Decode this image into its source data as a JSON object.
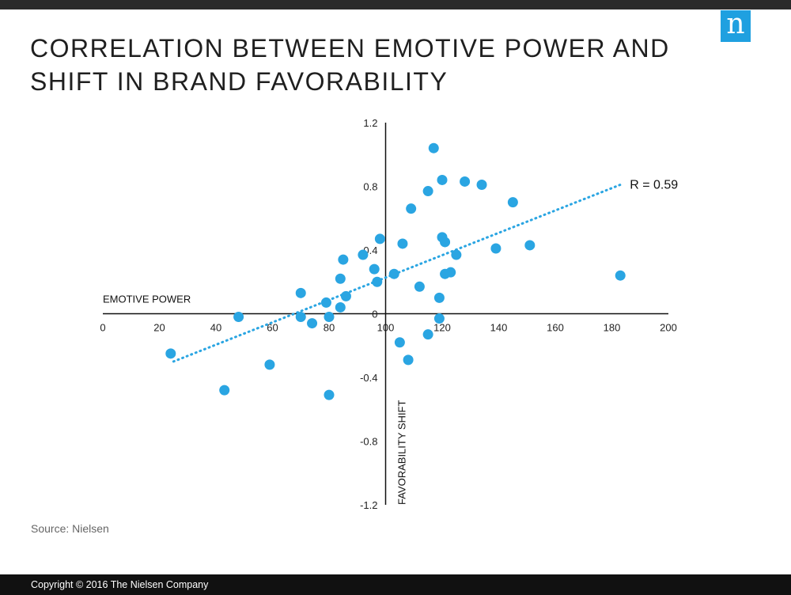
{
  "header": {
    "title": "CORRELATION BETWEEN EMOTIVE POWER AND SHIFT IN BRAND FAVORABILITY",
    "logo_letter": "n",
    "brand_color": "#1fa0e0"
  },
  "source": "Source: Nielsen",
  "footer": {
    "copyright": "Copyright © 2016 The Nielsen Company"
  },
  "chart_data": {
    "type": "scatter",
    "title": "CORRELATION BETWEEN EMOTIVE POWER AND SHIFT IN BRAND FAVORABILITY",
    "xlabel": "EMOTIVE POWER",
    "ylabel": "FAVORABILITY SHIFT",
    "xlim": [
      0,
      200
    ],
    "ylim": [
      -1.2,
      1.2
    ],
    "x_ticks": [
      0,
      20,
      40,
      60,
      80,
      100,
      120,
      140,
      160,
      180,
      200
    ],
    "x_tick_labels": [
      "0",
      "20",
      "40",
      "60",
      "80",
      "100",
      "120",
      "140",
      "160",
      "180",
      "200"
    ],
    "y_ticks": [
      1.2,
      0.8,
      0.4,
      0,
      -0.4,
      -0.8,
      -1.2
    ],
    "y_tick_labels": [
      "1.2",
      "0.8",
      "0.4",
      "0",
      "-0.4",
      "-0.8",
      "-1.2"
    ],
    "axis_cross": {
      "x": 100,
      "y": 0
    },
    "point_color": "#2aa5e2",
    "points": [
      {
        "x": 24,
        "y": -0.25
      },
      {
        "x": 43,
        "y": -0.48
      },
      {
        "x": 48,
        "y": -0.02
      },
      {
        "x": 59,
        "y": -0.32
      },
      {
        "x": 70,
        "y": 0.13
      },
      {
        "x": 70,
        "y": -0.02
      },
      {
        "x": 74,
        "y": -0.06
      },
      {
        "x": 79,
        "y": 0.07
      },
      {
        "x": 80,
        "y": -0.02
      },
      {
        "x": 80,
        "y": -0.51
      },
      {
        "x": 84,
        "y": 0.22
      },
      {
        "x": 84,
        "y": 0.04
      },
      {
        "x": 85,
        "y": 0.34
      },
      {
        "x": 86,
        "y": 0.11
      },
      {
        "x": 92,
        "y": 0.37
      },
      {
        "x": 96,
        "y": 0.28
      },
      {
        "x": 97,
        "y": 0.2
      },
      {
        "x": 98,
        "y": 0.47
      },
      {
        "x": 103,
        "y": 0.25
      },
      {
        "x": 105,
        "y": -0.18
      },
      {
        "x": 106,
        "y": 0.44
      },
      {
        "x": 108,
        "y": -0.29
      },
      {
        "x": 109,
        "y": 0.66
      },
      {
        "x": 112,
        "y": 0.17
      },
      {
        "x": 115,
        "y": 0.77
      },
      {
        "x": 115,
        "y": -0.13
      },
      {
        "x": 117,
        "y": 1.04
      },
      {
        "x": 119,
        "y": 0.1
      },
      {
        "x": 119,
        "y": -0.03
      },
      {
        "x": 120,
        "y": 0.84
      },
      {
        "x": 120,
        "y": 0.48
      },
      {
        "x": 121,
        "y": 0.25
      },
      {
        "x": 121,
        "y": 0.45
      },
      {
        "x": 123,
        "y": 0.26
      },
      {
        "x": 125,
        "y": 0.37
      },
      {
        "x": 128,
        "y": 0.83
      },
      {
        "x": 134,
        "y": 0.81
      },
      {
        "x": 139,
        "y": 0.41
      },
      {
        "x": 145,
        "y": 0.7
      },
      {
        "x": 151,
        "y": 0.43
      },
      {
        "x": 183,
        "y": 0.24
      }
    ],
    "trendline": {
      "x1": 25,
      "y1": -0.3,
      "x2": 183,
      "y2": 0.81,
      "color": "#2aa5e2",
      "style": "dotted"
    },
    "annotation": "R = 0.59"
  }
}
